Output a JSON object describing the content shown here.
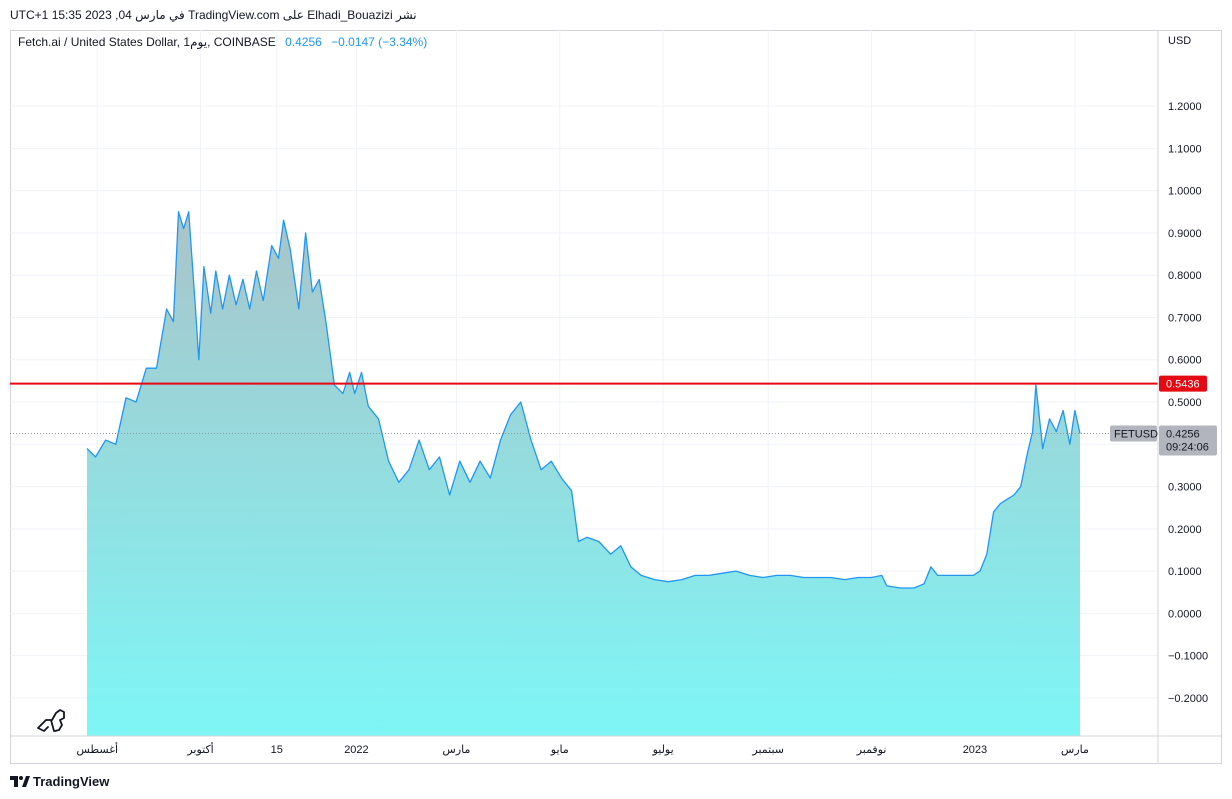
{
  "header": {
    "publish_line": "UTC+1 في مارس 04, 2023 15:35 TradingView.com على Elhadi_Bouazizi نشر"
  },
  "legend": {
    "symbol_line": "Fetch.ai / United States Dollar, 1يوم, COINBASE",
    "last": "0.4256",
    "change": "−0.0147 (−3.34%)"
  },
  "price_axis": {
    "unit": "USD",
    "ticks": [
      "1.2000",
      "1.1000",
      "1.0000",
      "0.9000",
      "0.8000",
      "0.7000",
      "0.6000",
      "0.5000",
      "0.4000",
      "0.3000",
      "0.2000",
      "0.1000",
      "0.0000",
      "−0.1000",
      "−0.2000"
    ]
  },
  "time_axis": {
    "labels": [
      "أغسطس",
      "أكتوبر",
      "15",
      "2022",
      "مارس",
      "مايو",
      "يوليو",
      "سبتمبر",
      "نوفمبر",
      "2023",
      "مارس"
    ]
  },
  "hline": {
    "value": 0.5436,
    "label": "0.5436",
    "color": "#e50914"
  },
  "price_badge": {
    "symbol": "FETUSD",
    "price": "0.4256",
    "countdown": "09:24:06"
  },
  "brand": {
    "name": "TradingView"
  },
  "colors": {
    "line": "#2196f3",
    "area_top": "#a9c4c9",
    "area_bottom": "#7ef6f6",
    "grid": "#f0f3fa"
  },
  "chart_data": {
    "type": "area",
    "title": "Fetch.ai / United States Dollar, 1يوم, COINBASE",
    "xlabel": "",
    "ylabel": "USD",
    "ylim": [
      -0.29,
      1.38
    ],
    "grid": true,
    "x_ticks": [
      "أغسطس",
      "أكتوبر",
      "15",
      "2022",
      "مارس",
      "مايو",
      "يوليو",
      "سبتمبر",
      "نوفمبر",
      "2023",
      "مارس"
    ],
    "x_range": [
      "2021-07-26",
      "2023-03-04"
    ],
    "series": [
      {
        "name": "FETUSD",
        "points": [
          [
            "2021-07-26",
            0.39
          ],
          [
            "2021-07-31",
            0.37
          ],
          [
            "2021-08-06",
            0.41
          ],
          [
            "2021-08-12",
            0.4
          ],
          [
            "2021-08-18",
            0.51
          ],
          [
            "2021-08-24",
            0.5
          ],
          [
            "2021-08-30",
            0.58
          ],
          [
            "2021-09-05",
            0.58
          ],
          [
            "2021-09-11",
            0.72
          ],
          [
            "2021-09-15",
            0.69
          ],
          [
            "2021-09-18",
            0.95
          ],
          [
            "2021-09-21",
            0.91
          ],
          [
            "2021-09-24",
            0.95
          ],
          [
            "2021-09-28",
            0.72
          ],
          [
            "2021-09-30",
            0.6
          ],
          [
            "2021-10-03",
            0.82
          ],
          [
            "2021-10-07",
            0.71
          ],
          [
            "2021-10-10",
            0.81
          ],
          [
            "2021-10-14",
            0.72
          ],
          [
            "2021-10-18",
            0.8
          ],
          [
            "2021-10-22",
            0.73
          ],
          [
            "2021-10-26",
            0.79
          ],
          [
            "2021-10-30",
            0.72
          ],
          [
            "2021-11-03",
            0.81
          ],
          [
            "2021-11-07",
            0.74
          ],
          [
            "2021-11-12",
            0.87
          ],
          [
            "2021-11-16",
            0.84
          ],
          [
            "2021-11-19",
            0.93
          ],
          [
            "2021-11-23",
            0.86
          ],
          [
            "2021-11-28",
            0.72
          ],
          [
            "2021-12-02",
            0.9
          ],
          [
            "2021-12-06",
            0.76
          ],
          [
            "2021-12-10",
            0.79
          ],
          [
            "2021-12-14",
            0.69
          ],
          [
            "2021-12-19",
            0.54
          ],
          [
            "2021-12-24",
            0.52
          ],
          [
            "2021-12-28",
            0.57
          ],
          [
            "2021-12-31",
            0.52
          ],
          [
            "2022-01-04",
            0.57
          ],
          [
            "2022-01-08",
            0.49
          ],
          [
            "2022-01-14",
            0.46
          ],
          [
            "2022-01-20",
            0.36
          ],
          [
            "2022-01-26",
            0.31
          ],
          [
            "2022-02-01",
            0.34
          ],
          [
            "2022-02-07",
            0.41
          ],
          [
            "2022-02-13",
            0.34
          ],
          [
            "2022-02-19",
            0.37
          ],
          [
            "2022-02-25",
            0.28
          ],
          [
            "2022-03-03",
            0.36
          ],
          [
            "2022-03-09",
            0.31
          ],
          [
            "2022-03-15",
            0.36
          ],
          [
            "2022-03-21",
            0.32
          ],
          [
            "2022-03-27",
            0.41
          ],
          [
            "2022-04-02",
            0.47
          ],
          [
            "2022-04-08",
            0.5
          ],
          [
            "2022-04-14",
            0.41
          ],
          [
            "2022-04-20",
            0.34
          ],
          [
            "2022-04-26",
            0.36
          ],
          [
            "2022-05-02",
            0.32
          ],
          [
            "2022-05-08",
            0.29
          ],
          [
            "2022-05-12",
            0.17
          ],
          [
            "2022-05-17",
            0.18
          ],
          [
            "2022-05-24",
            0.17
          ],
          [
            "2022-05-31",
            0.14
          ],
          [
            "2022-06-06",
            0.16
          ],
          [
            "2022-06-12",
            0.11
          ],
          [
            "2022-06-18",
            0.09
          ],
          [
            "2022-06-26",
            0.08
          ],
          [
            "2022-07-04",
            0.075
          ],
          [
            "2022-07-12",
            0.08
          ],
          [
            "2022-07-20",
            0.09
          ],
          [
            "2022-07-28",
            0.09
          ],
          [
            "2022-08-05",
            0.095
          ],
          [
            "2022-08-13",
            0.1
          ],
          [
            "2022-08-21",
            0.09
          ],
          [
            "2022-08-29",
            0.085
          ],
          [
            "2022-09-06",
            0.09
          ],
          [
            "2022-09-14",
            0.09
          ],
          [
            "2022-09-22",
            0.085
          ],
          [
            "2022-09-30",
            0.085
          ],
          [
            "2022-10-08",
            0.085
          ],
          [
            "2022-10-16",
            0.08
          ],
          [
            "2022-10-24",
            0.085
          ],
          [
            "2022-11-01",
            0.085
          ],
          [
            "2022-11-07",
            0.09
          ],
          [
            "2022-11-10",
            0.065
          ],
          [
            "2022-11-18",
            0.06
          ],
          [
            "2022-11-26",
            0.06
          ],
          [
            "2022-12-02",
            0.07
          ],
          [
            "2022-12-06",
            0.11
          ],
          [
            "2022-12-10",
            0.09
          ],
          [
            "2022-12-18",
            0.09
          ],
          [
            "2022-12-26",
            0.09
          ],
          [
            "2022-12-31",
            0.09
          ],
          [
            "2023-01-04",
            0.1
          ],
          [
            "2023-01-08",
            0.14
          ],
          [
            "2023-01-12",
            0.24
          ],
          [
            "2023-01-16",
            0.26
          ],
          [
            "2023-01-20",
            0.27
          ],
          [
            "2023-01-24",
            0.28
          ],
          [
            "2023-01-28",
            0.3
          ],
          [
            "2023-02-01",
            0.38
          ],
          [
            "2023-02-04",
            0.43
          ],
          [
            "2023-02-06",
            0.54
          ],
          [
            "2023-02-10",
            0.39
          ],
          [
            "2023-02-14",
            0.46
          ],
          [
            "2023-02-18",
            0.43
          ],
          [
            "2023-02-22",
            0.48
          ],
          [
            "2023-02-26",
            0.4
          ],
          [
            "2023-03-01",
            0.48
          ],
          [
            "2023-03-04",
            0.4256
          ]
        ]
      }
    ],
    "hlines": [
      0.5436
    ],
    "last_value": 0.4256
  }
}
